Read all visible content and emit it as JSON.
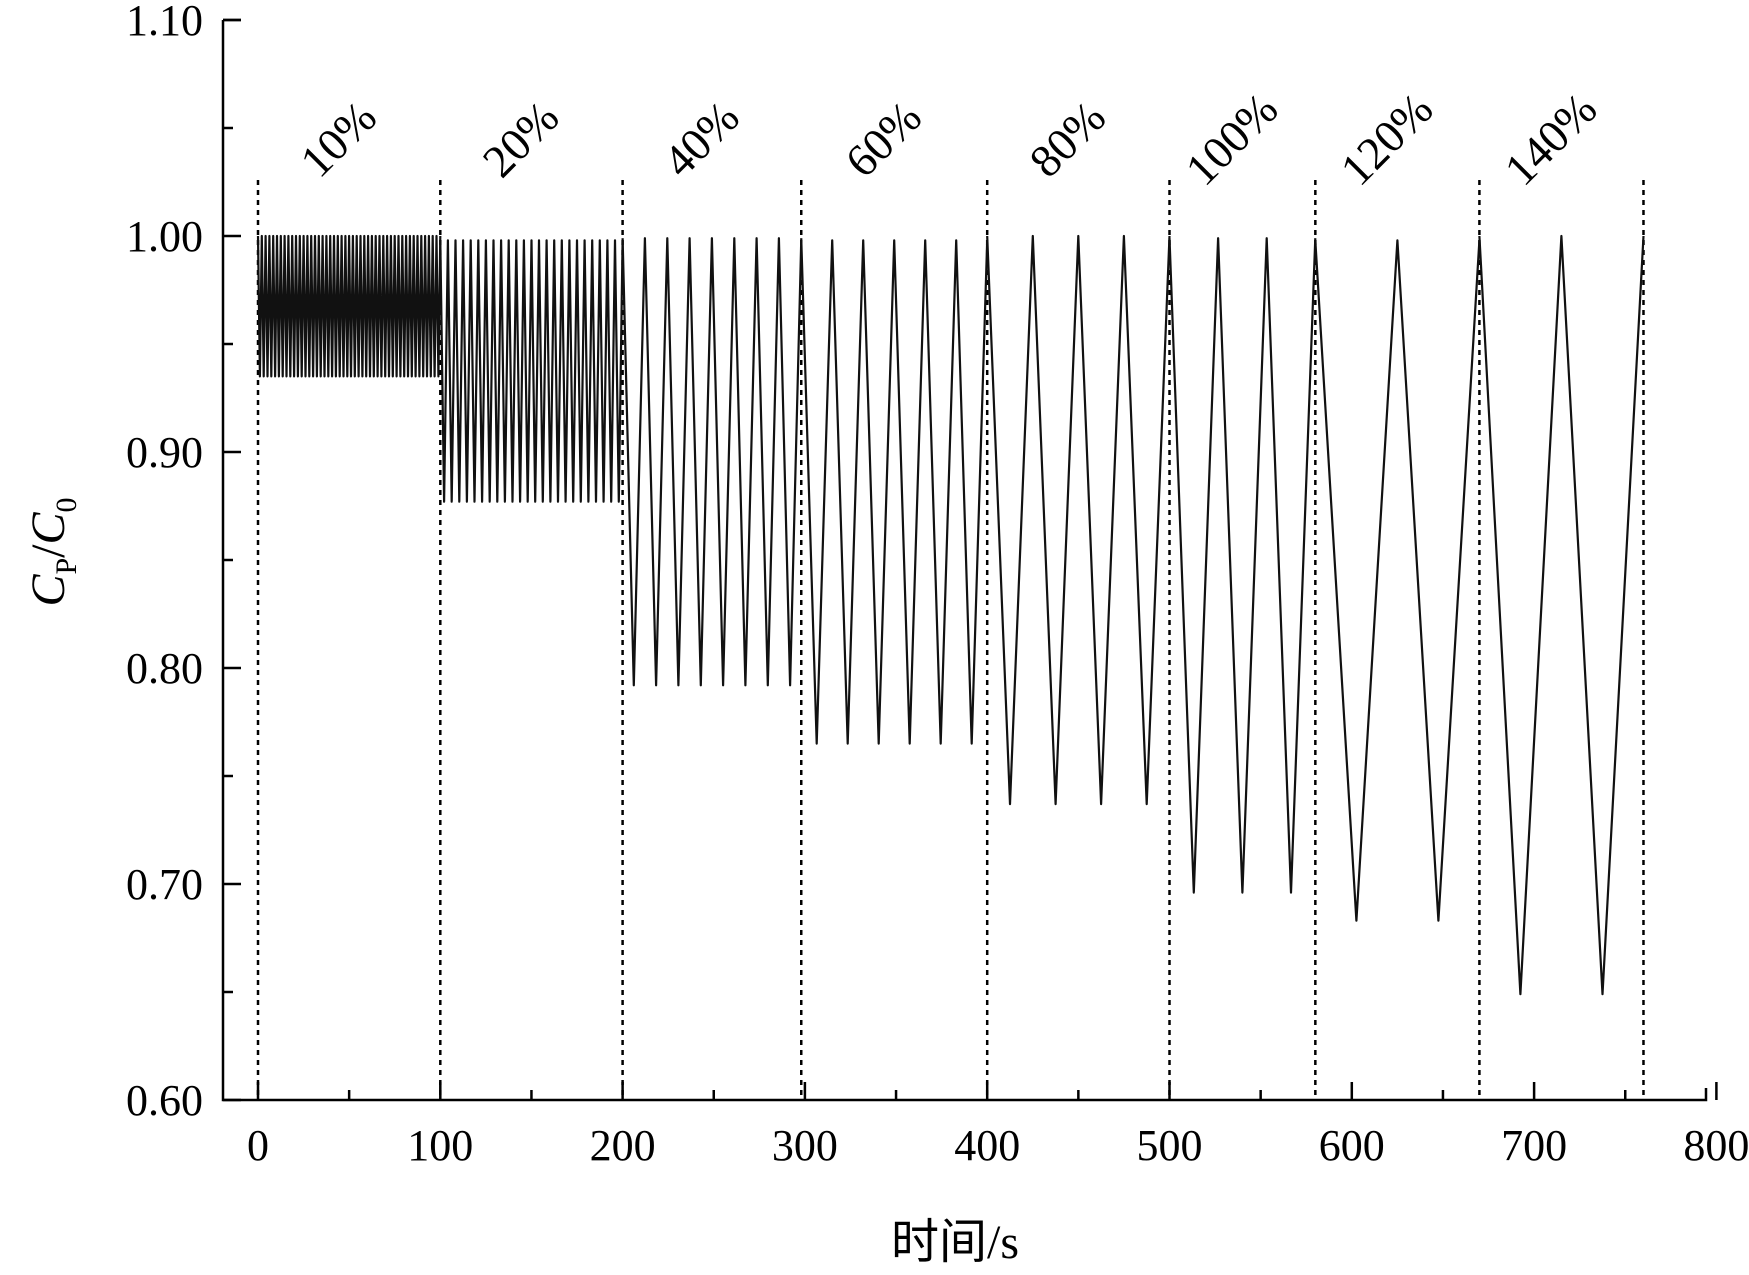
{
  "chart_data": {
    "type": "line",
    "title": "",
    "xlabel": "时间/s",
    "ylabel": {
      "main": "C",
      "sub1": "P",
      "sep": "/",
      "main2": "C",
      "sub2": "0"
    },
    "xlim": [
      -20,
      800
    ],
    "ylim": [
      0.6,
      1.1
    ],
    "x_ticks": [
      {
        "value": 0,
        "label": "0"
      },
      {
        "value": 100,
        "label": "100"
      },
      {
        "value": 200,
        "label": "200"
      },
      {
        "value": 300,
        "label": "300"
      },
      {
        "value": 400,
        "label": "400"
      },
      {
        "value": 500,
        "label": "500"
      },
      {
        "value": 600,
        "label": "600"
      },
      {
        "value": 700,
        "label": "700"
      },
      {
        "value": 800,
        "label": "800"
      }
    ],
    "y_ticks": [
      {
        "value": 0.6,
        "label": "0.60"
      },
      {
        "value": 0.7,
        "label": "0.70"
      },
      {
        "value": 0.8,
        "label": "0.80"
      },
      {
        "value": 0.9,
        "label": "0.90"
      },
      {
        "value": 1.0,
        "label": "1.00"
      },
      {
        "value": 1.1,
        "label": "1.10"
      }
    ],
    "grid": false,
    "segments": [
      {
        "label": "10%",
        "start": 0,
        "end": 100,
        "cycles": 48,
        "min": 0.935,
        "max": 1.0
      },
      {
        "label": "20%",
        "start": 100,
        "end": 200,
        "cycles": 24,
        "min": 0.877,
        "max": 0.998
      },
      {
        "label": "40%",
        "start": 200,
        "end": 298,
        "cycles": 8,
        "min": 0.792,
        "max": 0.999
      },
      {
        "label": "60%",
        "start": 298,
        "end": 400,
        "cycles": 6,
        "min": 0.765,
        "max": 0.998
      },
      {
        "label": "80%",
        "start": 400,
        "end": 500,
        "cycles": 4,
        "min": 0.737,
        "max": 1.0
      },
      {
        "label": "100%",
        "start": 500,
        "end": 580,
        "cycles": 3,
        "min": 0.696,
        "max": 0.999
      },
      {
        "label": "120%",
        "start": 580,
        "end": 670,
        "cycles": 2,
        "min": 0.683,
        "max": 0.998
      },
      {
        "label": "140%",
        "start": 670,
        "end": 760,
        "cycles": 2,
        "min": 0.649,
        "max": 1.0
      }
    ],
    "dividers": [
      0,
      100,
      200,
      298,
      400,
      500,
      580,
      670,
      760
    ]
  }
}
